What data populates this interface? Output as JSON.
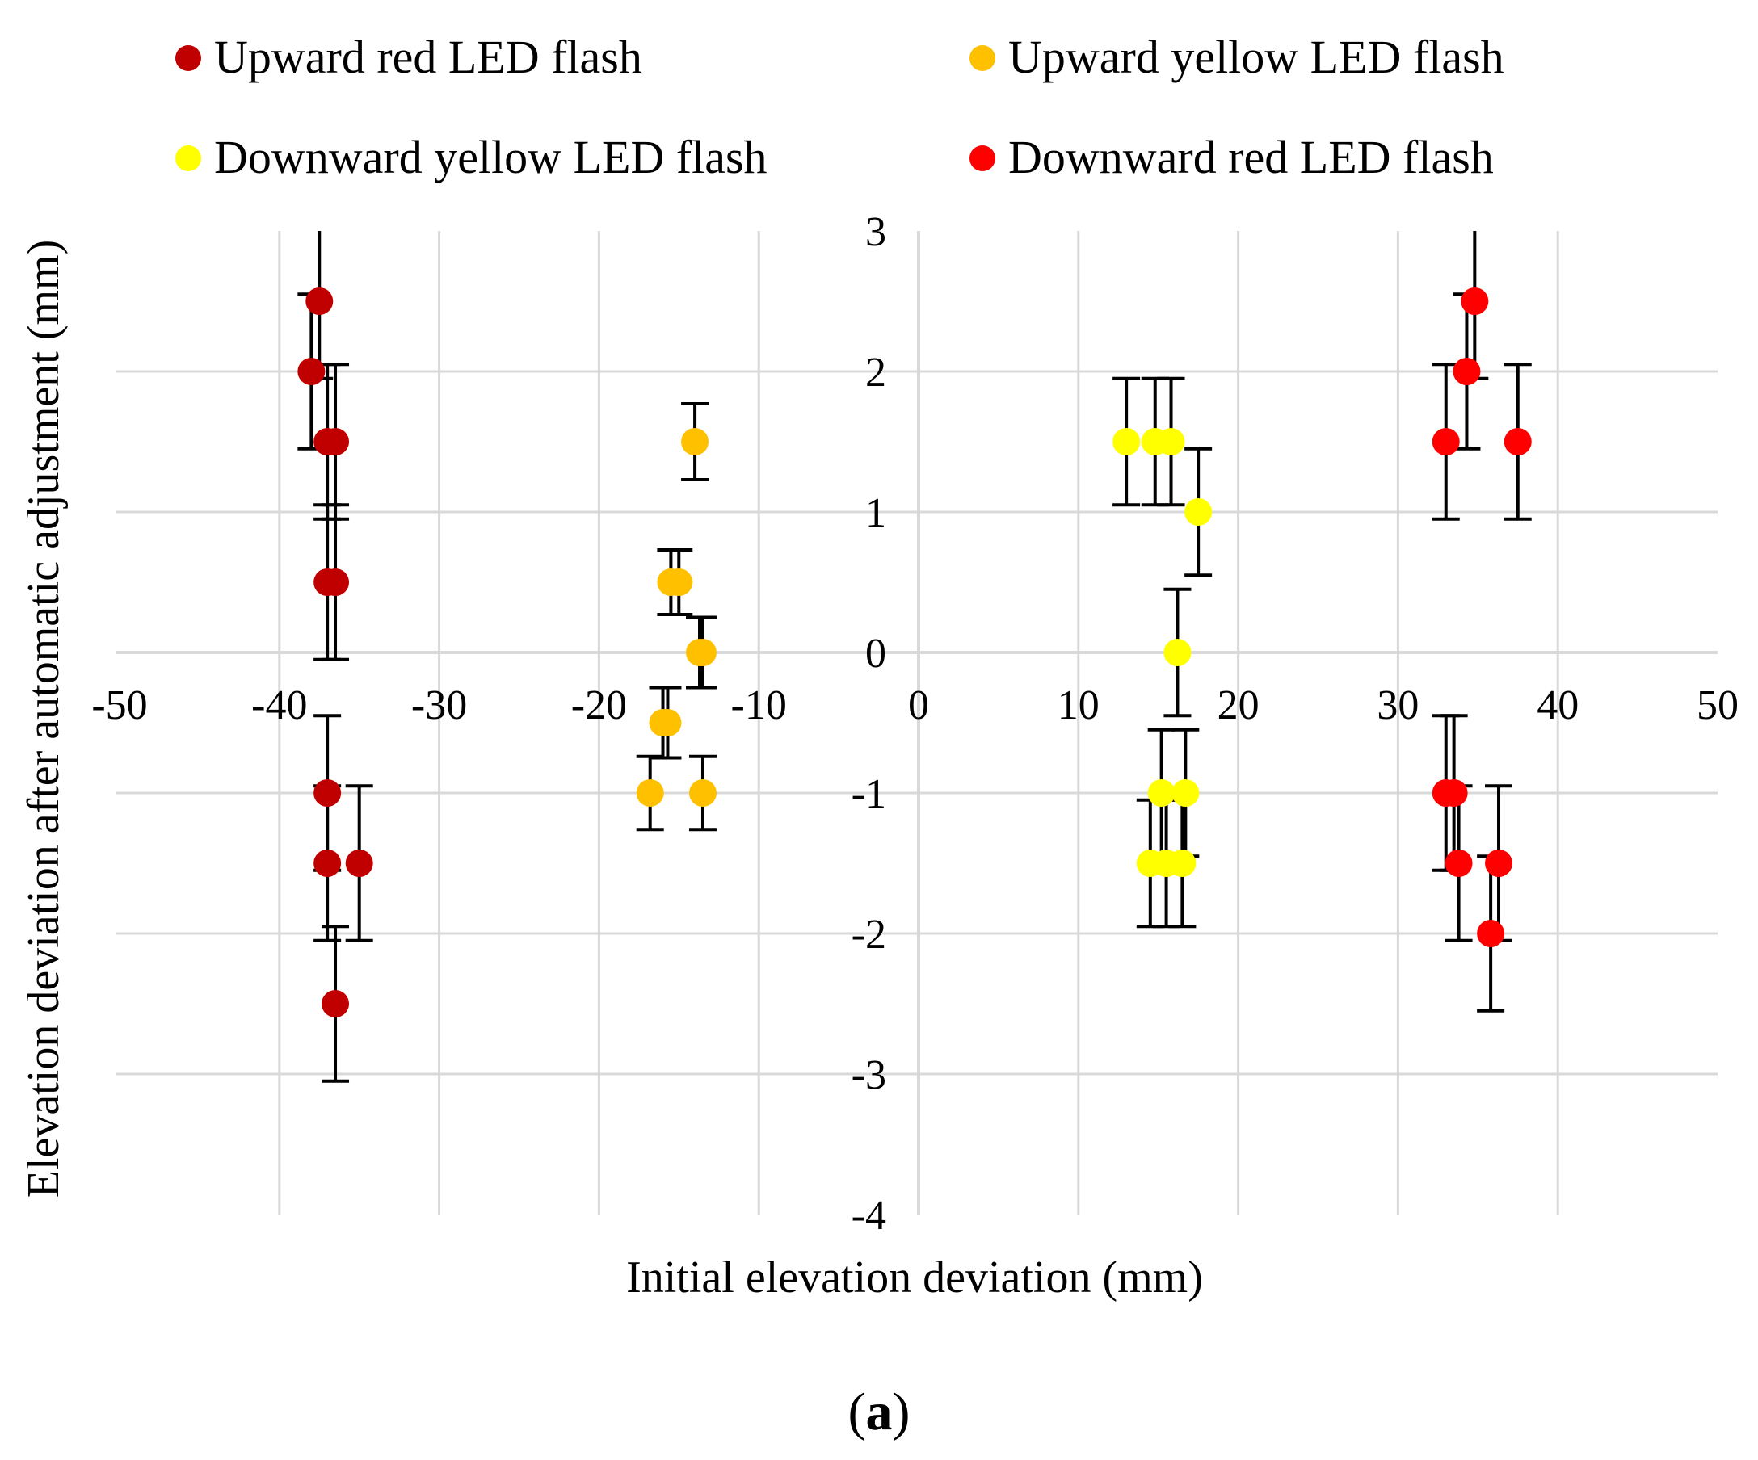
{
  "chart_data": {
    "type": "scatter",
    "title": "",
    "xlabel": "Initial elevation deviation (mm)",
    "ylabel": "Elevation deviation after automatic adjustment (mm)",
    "xlim": [
      -50,
      50
    ],
    "ylim": [
      -4,
      3
    ],
    "x_ticks": [
      -50,
      -40,
      -30,
      -20,
      -10,
      0,
      10,
      20,
      30,
      40,
      50
    ],
    "y_ticks": [
      -4,
      -3,
      -2,
      -1,
      0,
      1,
      2,
      3
    ],
    "grid": true,
    "legend_position": "top",
    "error_bars": true,
    "series": [
      {
        "name": "Upward red LED flash",
        "color": "#c00000",
        "points": [
          {
            "x": -37.5,
            "y": 2.5,
            "err": 0.55
          },
          {
            "x": -38.0,
            "y": 2.0,
            "err": 0.55
          },
          {
            "x": -37.0,
            "y": 1.5,
            "err": 0.55
          },
          {
            "x": -36.5,
            "y": 1.5,
            "err": 0.55
          },
          {
            "x": -37.0,
            "y": 0.5,
            "err": 0.55
          },
          {
            "x": -36.5,
            "y": 0.5,
            "err": 0.55
          },
          {
            "x": -37.0,
            "y": -1.0,
            "err": 0.55
          },
          {
            "x": -37.0,
            "y": -1.5,
            "err": 0.55
          },
          {
            "x": -35.0,
            "y": -1.5,
            "err": 0.55
          },
          {
            "x": -36.5,
            "y": -2.5,
            "err": 0.55
          }
        ]
      },
      {
        "name": "Upward yellow LED flash",
        "color": "#ffc000",
        "points": [
          {
            "x": -14.0,
            "y": 1.5,
            "err": 0.27
          },
          {
            "x": -15.5,
            "y": 0.5,
            "err": 0.23
          },
          {
            "x": -15.0,
            "y": 0.5,
            "err": 0.23
          },
          {
            "x": -13.5,
            "y": 0.0,
            "err": 0.25
          },
          {
            "x": -13.7,
            "y": 0.0,
            "err": 0.25
          },
          {
            "x": -16.0,
            "y": -0.5,
            "err": 0.25
          },
          {
            "x": -15.7,
            "y": -0.5,
            "err": 0.25
          },
          {
            "x": -16.8,
            "y": -1.0,
            "err": 0.26
          },
          {
            "x": -13.5,
            "y": -1.0,
            "err": 0.26
          }
        ]
      },
      {
        "name": "Downward yellow LED flash",
        "color": "#ffff00",
        "points": [
          {
            "x": 13.0,
            "y": 1.5,
            "err": 0.45
          },
          {
            "x": 14.8,
            "y": 1.5,
            "err": 0.45
          },
          {
            "x": 15.8,
            "y": 1.5,
            "err": 0.45
          },
          {
            "x": 17.5,
            "y": 1.0,
            "err": 0.45
          },
          {
            "x": 16.2,
            "y": 0.0,
            "err": 0.45
          },
          {
            "x": 15.2,
            "y": -1.0,
            "err": 0.45
          },
          {
            "x": 16.7,
            "y": -1.0,
            "err": 0.45
          },
          {
            "x": 14.5,
            "y": -1.5,
            "err": 0.45
          },
          {
            "x": 15.5,
            "y": -1.5,
            "err": 0.45
          },
          {
            "x": 16.5,
            "y": -1.5,
            "err": 0.45
          }
        ]
      },
      {
        "name": "Downward red LED flash",
        "color": "#ff0000",
        "points": [
          {
            "x": 34.8,
            "y": 2.5,
            "err": 0.55
          },
          {
            "x": 34.3,
            "y": 2.0,
            "err": 0.55
          },
          {
            "x": 33.0,
            "y": 1.5,
            "err": 0.55
          },
          {
            "x": 37.5,
            "y": 1.5,
            "err": 0.55
          },
          {
            "x": 33.0,
            "y": -1.0,
            "err": 0.55
          },
          {
            "x": 33.5,
            "y": -1.0,
            "err": 0.55
          },
          {
            "x": 33.8,
            "y": -1.5,
            "err": 0.55
          },
          {
            "x": 36.3,
            "y": -1.5,
            "err": 0.55
          },
          {
            "x": 35.8,
            "y": -2.0,
            "err": 0.55
          }
        ]
      }
    ]
  },
  "caption": {
    "open_paren": "(",
    "letter": "a",
    "close_paren": ")"
  }
}
